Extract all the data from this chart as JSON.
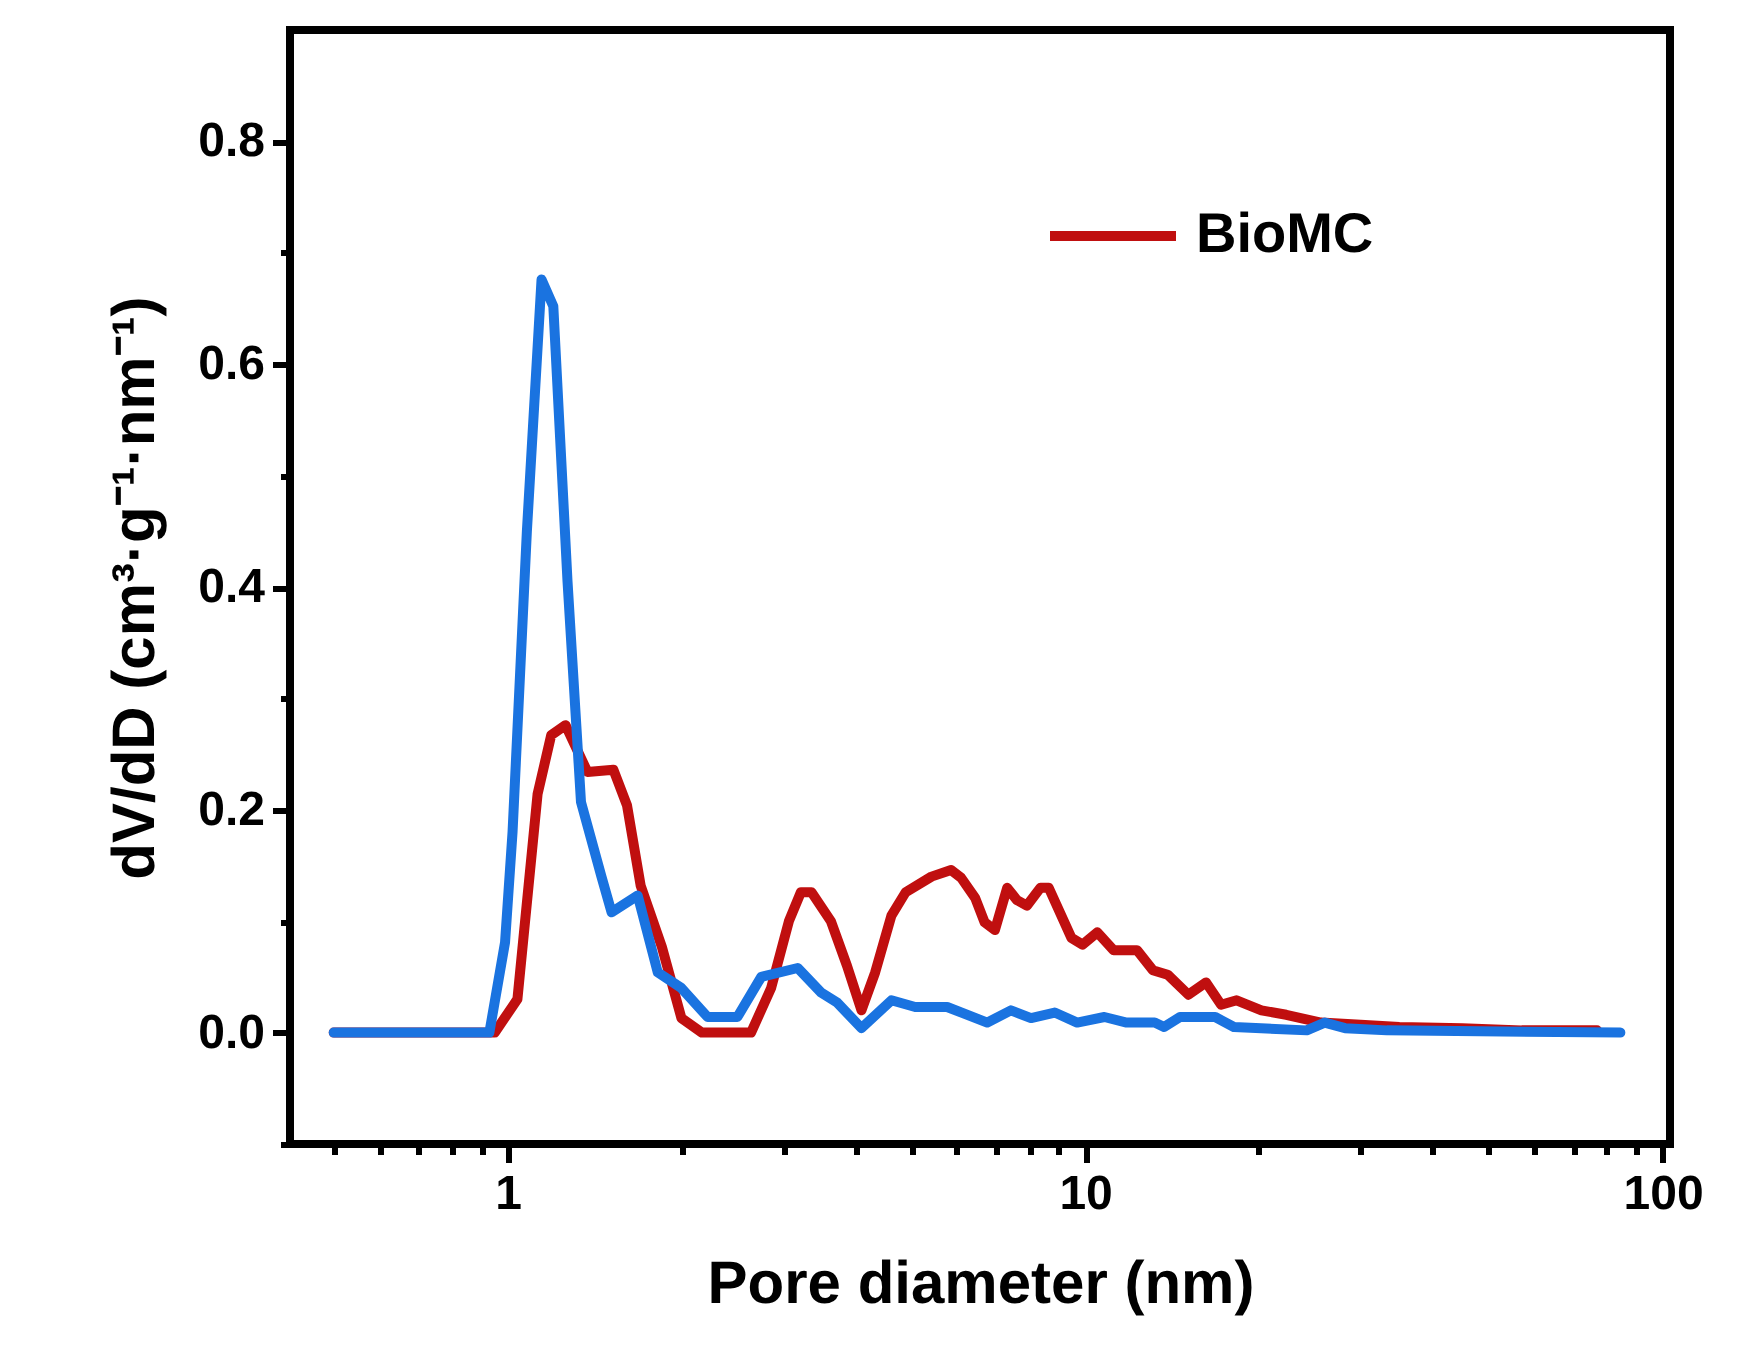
{
  "chart_data": {
    "type": "line",
    "xlabel": "Pore diameter (nm)",
    "ylabel": "dV/dD (cm³·g⁻¹·nm⁻¹)",
    "log": "x",
    "xlim": [
      0.42,
      103
    ],
    "ylim": [
      -0.1,
      0.9
    ],
    "xticks": [
      {
        "value": 0.5,
        "label": null
      },
      {
        "value": 0.6,
        "label": null
      },
      {
        "value": 0.7,
        "label": null
      },
      {
        "value": 0.8,
        "label": null
      },
      {
        "value": 0.9,
        "label": null
      },
      1,
      {
        "value": 2,
        "label": null
      },
      {
        "value": 3,
        "label": null
      },
      {
        "value": 4,
        "label": null
      },
      {
        "value": 5,
        "label": null
      },
      {
        "value": 6,
        "label": null
      },
      {
        "value": 7,
        "label": null
      },
      {
        "value": 8,
        "label": null
      },
      {
        "value": 9,
        "label": null
      },
      10,
      {
        "value": 20,
        "label": null
      },
      {
        "value": 30,
        "label": null
      },
      {
        "value": 40,
        "label": null
      },
      {
        "value": 50,
        "label": null
      },
      {
        "value": 60,
        "label": null
      },
      {
        "value": 70,
        "label": null
      },
      {
        "value": 80,
        "label": null
      },
      {
        "value": 90,
        "label": null
      },
      100
    ],
    "yticks": [
      {
        "value": -0.1,
        "label": null
      },
      {
        "value": 0,
        "label": "0.0"
      },
      {
        "value": 0.1,
        "label": null
      },
      0.2,
      {
        "value": 0.3,
        "label": null
      },
      0.4,
      {
        "value": 0.5,
        "label": null
      },
      0.6,
      {
        "value": 0.7,
        "label": null
      },
      0.8
    ],
    "grid": false,
    "legend": "top right",
    "marker": "none",
    "line_style": "solid",
    "series": [
      {
        "name": "BioMC",
        "color": "#c00f0f",
        "x": [
          0.5,
          0.95,
          1.04,
          1.127,
          1.19,
          1.26,
          1.375,
          1.525,
          1.61,
          1.7,
          1.85,
          2.0,
          2.17,
          2.64,
          2.86,
          3.07,
          3.22,
          3.36,
          3.63,
          3.87,
          4.1,
          4.33,
          4.62,
          4.89,
          5.42,
          5.86,
          6.1,
          6.45,
          6.7,
          6.98,
          7.33,
          7.62,
          7.93,
          8.37,
          8.65,
          9.47,
          9.9,
          10.5,
          11.2,
          12.3,
          13.1,
          13.9,
          15.1,
          16.2,
          17.2,
          18.3,
          20.2,
          22.3,
          25.6,
          30,
          35,
          45,
          57,
          77
        ],
        "values": [
          0,
          0,
          0.03,
          0.214,
          0.267,
          0.276,
          0.234,
          0.236,
          0.204,
          0.132,
          0.077,
          0.013,
          0,
          0,
          0.04,
          0.1,
          0.126,
          0.126,
          0.1,
          0.06,
          0.02,
          0.054,
          0.105,
          0.126,
          0.14,
          0.146,
          0.139,
          0.121,
          0.099,
          0.092,
          0.13,
          0.119,
          0.114,
          0.13,
          0.13,
          0.085,
          0.079,
          0.09,
          0.074,
          0.074,
          0.056,
          0.052,
          0.034,
          0.045,
          0.025,
          0.029,
          0.02,
          0.016,
          0.009,
          0.007,
          0.005,
          0.004,
          0.002,
          0.002
        ]
      },
      {
        "color": "#1a73e0",
        "x": [
          0.5,
          0.93,
          0.99,
          1.02,
          1.08,
          1.145,
          1.2,
          1.27,
          1.34,
          1.454,
          1.514,
          1.68,
          1.82,
          2.0,
          2.22,
          2.5,
          2.75,
          3.18,
          3.49,
          3.72,
          4.1,
          4.62,
          5.08,
          5.77,
          6.77,
          7.44,
          8.06,
          8.86,
          9.69,
          10.8,
          11.8,
          13.2,
          13.7,
          14.6,
          16.8,
          18.1,
          24.2,
          26,
          28.2,
          33.3,
          84.5
        ],
        "values": [
          0,
          0,
          0.081,
          0.18,
          0.45,
          0.676,
          0.652,
          0.405,
          0.207,
          0.14,
          0.108,
          0.123,
          0.054,
          0.04,
          0.014,
          0.014,
          0.05,
          0.058,
          0.036,
          0.027,
          0.004,
          0.029,
          0.023,
          0.023,
          0.009,
          0.02,
          0.013,
          0.018,
          0.009,
          0.014,
          0.009,
          0.009,
          0.005,
          0.014,
          0.014,
          0.005,
          0.002,
          0.009,
          0.004,
          0.002,
          0
        ]
      }
    ]
  }
}
